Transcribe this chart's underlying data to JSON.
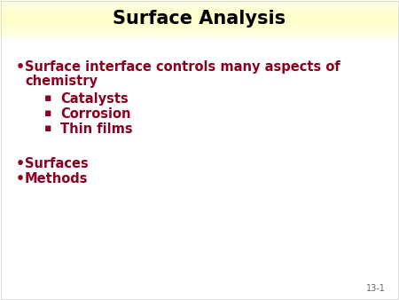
{
  "title": "Surface Analysis",
  "title_fontsize": 15,
  "title_color": "#000000",
  "title_bg_color": "#FFFFCC",
  "text_color": "#8B0020",
  "background_color": "#FFFFFF",
  "slide_number": "13-1",
  "sub_bullets": [
    "Catalysts",
    "Corrosion",
    "Thin films"
  ],
  "bullet2": "Surfaces",
  "bullet3": "Methods",
  "main_fontsize": 10.5,
  "sub_fontsize": 10.5,
  "slide_num_fontsize": 7
}
